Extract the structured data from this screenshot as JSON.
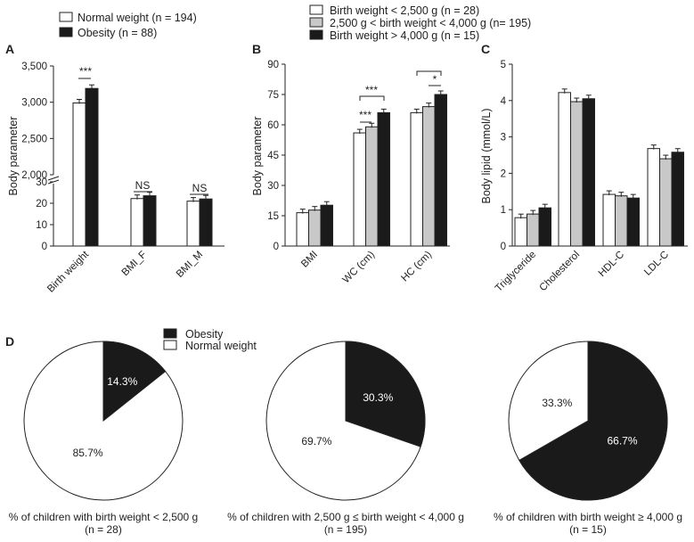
{
  "colors": {
    "white": "#ffffff",
    "gray": "#c8c8c8",
    "black": "#1a1a1a",
    "axis": "#222222"
  },
  "chart_data": [
    {
      "panel": "A",
      "type": "bar",
      "ylabel": "Body parameter",
      "axis_break": {
        "lower": [
          0,
          30
        ],
        "upper": [
          2000,
          3500
        ]
      },
      "lower_ticks": [
        "0",
        "10",
        "20",
        "30"
      ],
      "upper_ticks": [
        "2,000",
        "2,500",
        "3,000",
        "3,500"
      ],
      "categories": [
        "Birth weight",
        "BMI_F",
        "BMI_M"
      ],
      "series": [
        {
          "name": "Normal weight (n = 194)",
          "values": [
            2990,
            22.2,
            21.0
          ],
          "errors": [
            30,
            0.2,
            0.2
          ]
        },
        {
          "name": "Obesity (n = 88)",
          "values": [
            3190,
            23.5,
            22.0
          ],
          "errors": [
            40,
            0.3,
            0.3
          ]
        }
      ],
      "annotations": [
        "***",
        "NS",
        "NS"
      ]
    },
    {
      "panel": "B",
      "type": "bar",
      "ylabel": "Body parameter",
      "ylim": [
        0,
        90
      ],
      "yticks": [
        "0",
        "15",
        "30",
        "45",
        "60",
        "75",
        "90"
      ],
      "categories": [
        "BMI",
        "WC (cm)",
        "HC (cm)"
      ],
      "series": [
        {
          "name": "Birth weight < 2,500 g (n = 28)",
          "values": [
            16.5,
            56,
            66
          ],
          "errors": [
            0.5,
            1.5,
            1.2
          ]
        },
        {
          "name": "2,500 g < birth weight < 4,000 g (n= 195)",
          "values": [
            17.8,
            59,
            69
          ],
          "errors": [
            0.3,
            0.5,
            0.4
          ]
        },
        {
          "name": "Birth weight > 4,000 g (n = 15)",
          "values": [
            20.2,
            66,
            75
          ],
          "errors": [
            1.0,
            2.0,
            2.0
          ]
        }
      ],
      "annotations": [
        "***",
        "***",
        "*"
      ]
    },
    {
      "panel": "C",
      "type": "bar",
      "ylabel": "Body lipid (mmol/L)",
      "ylim": [
        0,
        5
      ],
      "yticks": [
        "0",
        "1",
        "2",
        "3",
        "4",
        "5"
      ],
      "categories": [
        "Triglyceride",
        "Cholesterol",
        "HDL-C",
        "LDL-C"
      ],
      "series": [
        {
          "values": [
            0.78,
            4.22,
            1.42,
            2.68
          ],
          "errors": [
            0.04,
            0.08,
            0.03,
            0.08
          ]
        },
        {
          "values": [
            0.88,
            3.97,
            1.38,
            2.4
          ],
          "errors": [
            0.02,
            0.03,
            0.02,
            0.03
          ]
        },
        {
          "values": [
            1.05,
            4.05,
            1.32,
            2.58
          ],
          "errors": [
            0.12,
            0.1,
            0.05,
            0.15
          ]
        }
      ]
    },
    {
      "panel": "D",
      "type": "pie",
      "legend": [
        "Obesity",
        "Normal weight"
      ],
      "pies": [
        {
          "obesity": 14.3,
          "normal": 85.7,
          "obesity_label": "14.3%",
          "normal_label": "85.7%",
          "caption1": "% of children with birth weight < 2,500 g",
          "caption2": "(n = 28)"
        },
        {
          "obesity": 30.3,
          "normal": 69.7,
          "obesity_label": "30.3%",
          "normal_label": "69.7%",
          "caption1": "% of children with 2,500 g ≤ birth weight < 4,000 g",
          "caption2": "(n = 195)"
        },
        {
          "obesity": 66.7,
          "normal": 33.3,
          "obesity_label": "66.7%",
          "normal_label": "33.3%",
          "caption1": "% of children with birth weight ≥ 4,000 g",
          "caption2": "(n = 15)"
        }
      ]
    }
  ]
}
